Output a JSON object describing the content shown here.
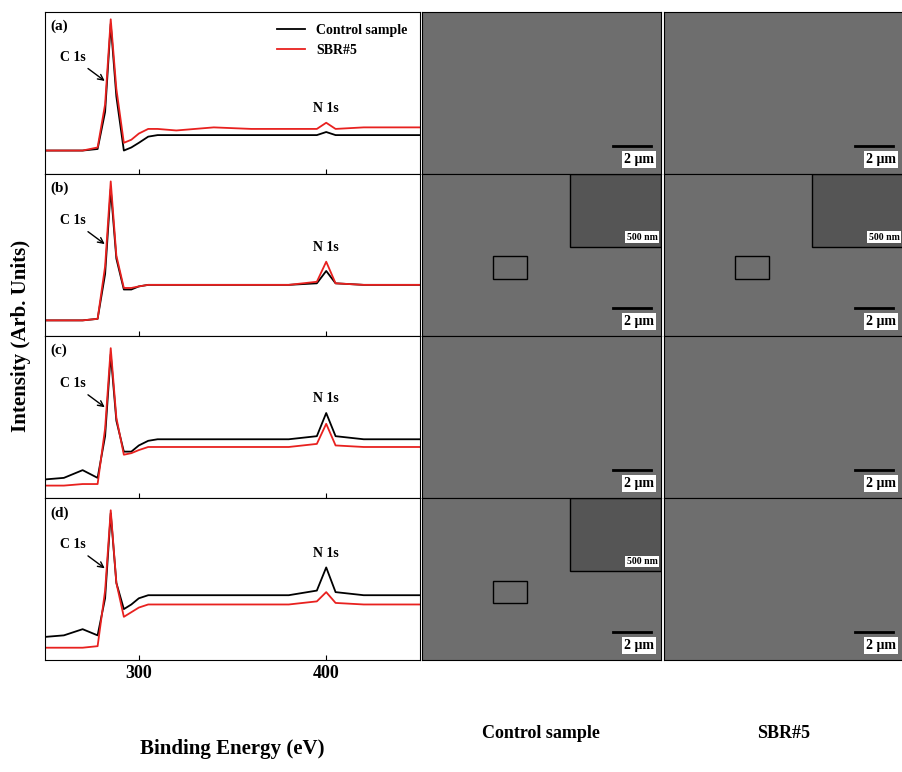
{
  "chart_data": [
    {
      "type": "line",
      "title": "(a)",
      "xlim": [
        250,
        450
      ],
      "xticks": [
        300,
        400
      ],
      "ylim": [
        0,
        1.05
      ],
      "yticks": [],
      "tick_labels": false,
      "legend": "upper right",
      "x": [
        250,
        260,
        270,
        278,
        282,
        285,
        288,
        292,
        296,
        300,
        305,
        310,
        320,
        340,
        360,
        380,
        395,
        400,
        405,
        420,
        440,
        450
      ],
      "series": [
        {
          "name": "Control sample",
          "color": "#000000",
          "values": [
            0.15,
            0.15,
            0.15,
            0.16,
            0.4,
            0.97,
            0.5,
            0.15,
            0.17,
            0.2,
            0.24,
            0.25,
            0.25,
            0.25,
            0.25,
            0.25,
            0.25,
            0.27,
            0.25,
            0.25,
            0.25,
            0.25
          ]
        },
        {
          "name": "SBR#5",
          "color": "#e8211f",
          "values": [
            0.15,
            0.15,
            0.15,
            0.17,
            0.45,
            1.0,
            0.55,
            0.2,
            0.22,
            0.26,
            0.29,
            0.29,
            0.28,
            0.3,
            0.29,
            0.29,
            0.29,
            0.33,
            0.29,
            0.3,
            0.3,
            0.3
          ]
        }
      ],
      "annotations": [
        {
          "text": "C 1s",
          "x": 283,
          "type": "arrow"
        },
        {
          "text": "N 1s",
          "x": 400,
          "type": "text"
        }
      ]
    },
    {
      "type": "line",
      "title": "(b)",
      "xlim": [
        250,
        450
      ],
      "xticks": [
        300,
        400
      ],
      "ylim": [
        0,
        1.05
      ],
      "yticks": [],
      "tick_labels": false,
      "x": [
        250,
        260,
        270,
        278,
        282,
        285,
        288,
        292,
        296,
        300,
        305,
        310,
        320,
        340,
        360,
        380,
        395,
        400,
        405,
        420,
        440,
        450
      ],
      "series": [
        {
          "name": "Control sample",
          "color": "#000000",
          "values": [
            0.1,
            0.1,
            0.1,
            0.11,
            0.4,
            0.95,
            0.5,
            0.3,
            0.3,
            0.32,
            0.33,
            0.33,
            0.33,
            0.33,
            0.33,
            0.33,
            0.34,
            0.42,
            0.34,
            0.33,
            0.33,
            0.33
          ]
        },
        {
          "name": "SBR#5",
          "color": "#e8211f",
          "values": [
            0.1,
            0.1,
            0.1,
            0.11,
            0.45,
            1.0,
            0.52,
            0.31,
            0.31,
            0.32,
            0.33,
            0.33,
            0.33,
            0.33,
            0.33,
            0.33,
            0.35,
            0.48,
            0.34,
            0.33,
            0.33,
            0.33
          ]
        }
      ],
      "annotations": [
        {
          "text": "C 1s",
          "x": 283,
          "type": "arrow"
        },
        {
          "text": "N 1s",
          "x": 400,
          "type": "text"
        }
      ]
    },
    {
      "type": "line",
      "title": "(c)",
      "xlim": [
        250,
        450
      ],
      "xticks": [
        300,
        400
      ],
      "ylim": [
        0,
        1.05
      ],
      "yticks": [],
      "tick_labels": false,
      "x": [
        250,
        260,
        270,
        278,
        282,
        285,
        288,
        292,
        296,
        300,
        305,
        310,
        320,
        340,
        360,
        380,
        395,
        400,
        405,
        420,
        440,
        450
      ],
      "series": [
        {
          "name": "Control sample",
          "color": "#000000",
          "values": [
            0.12,
            0.13,
            0.18,
            0.13,
            0.4,
            0.93,
            0.5,
            0.3,
            0.3,
            0.34,
            0.37,
            0.38,
            0.38,
            0.38,
            0.38,
            0.38,
            0.4,
            0.55,
            0.4,
            0.38,
            0.38,
            0.38
          ]
        },
        {
          "name": "SBR#5",
          "color": "#e8211f",
          "values": [
            0.08,
            0.08,
            0.09,
            0.09,
            0.45,
            0.97,
            0.52,
            0.28,
            0.29,
            0.31,
            0.33,
            0.33,
            0.33,
            0.33,
            0.33,
            0.33,
            0.35,
            0.48,
            0.34,
            0.33,
            0.33,
            0.33
          ]
        }
      ],
      "annotations": [
        {
          "text": "C 1s",
          "x": 283,
          "type": "arrow"
        },
        {
          "text": "N 1s",
          "x": 400,
          "type": "text"
        }
      ]
    },
    {
      "type": "line",
      "title": "(d)",
      "xlim": [
        250,
        450
      ],
      "xticks": [
        300,
        400
      ],
      "ylim": [
        0,
        1.05
      ],
      "yticks": [],
      "tick_labels": "x",
      "x": [
        250,
        260,
        270,
        278,
        282,
        285,
        288,
        292,
        296,
        300,
        305,
        310,
        320,
        340,
        360,
        380,
        395,
        400,
        405,
        420,
        440,
        450
      ],
      "series": [
        {
          "name": "Control sample",
          "color": "#000000",
          "values": [
            0.15,
            0.16,
            0.2,
            0.16,
            0.4,
            0.95,
            0.5,
            0.33,
            0.36,
            0.4,
            0.42,
            0.42,
            0.42,
            0.42,
            0.42,
            0.42,
            0.45,
            0.6,
            0.44,
            0.42,
            0.42,
            0.42
          ]
        },
        {
          "name": "SBR#5",
          "color": "#e8211f",
          "values": [
            0.08,
            0.08,
            0.08,
            0.09,
            0.45,
            0.97,
            0.5,
            0.28,
            0.31,
            0.34,
            0.36,
            0.36,
            0.36,
            0.36,
            0.36,
            0.36,
            0.38,
            0.44,
            0.37,
            0.36,
            0.36,
            0.36
          ]
        }
      ],
      "annotations": [
        {
          "text": "C 1s",
          "x": 283,
          "type": "arrow"
        },
        {
          "text": "N 1s",
          "x": 400,
          "type": "text"
        }
      ]
    }
  ],
  "y_label": "Intensity (Arb. Units)",
  "x_label": "Binding Energy (eV)",
  "image_columns": [
    "Control sample",
    "SBR#5"
  ],
  "sem_images": [
    [
      {
        "scale_bar": "2 μm"
      },
      {
        "scale_bar": "2 μm"
      }
    ],
    [
      {
        "scale_bar": "2 μm",
        "inset_scale_bar": "500 nm"
      },
      {
        "scale_bar": "2 μm",
        "inset_scale_bar": "500 nm"
      }
    ],
    [
      {
        "scale_bar": "2 μm"
      },
      {
        "scale_bar": "2 μm"
      }
    ],
    [
      {
        "scale_bar": "2 μm",
        "inset_scale_bar": "500 nm"
      },
      {
        "scale_bar": "2 μm"
      }
    ]
  ]
}
